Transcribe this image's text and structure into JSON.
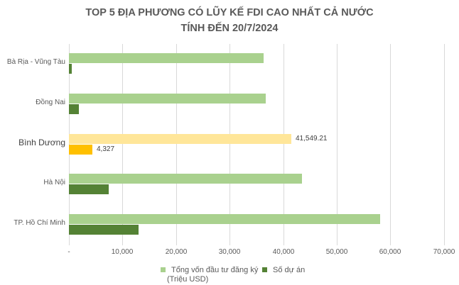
{
  "chart_data": {
    "type": "bar",
    "orientation": "horizontal",
    "title": "TOP 5 ĐỊA PHƯƠNG CÓ LŨY KẾ FDI CAO NHẤT CẢ NƯỚC",
    "subtitle": "TÍNH ĐẾN 20/7/2024",
    "categories": [
      "Bà Rịa - Vũng Tàu",
      "Đồng Nai",
      "Bình Dương",
      "Hà Nội",
      "TP. Hồ Chí Minh"
    ],
    "series": [
      {
        "name": "Tổng vốn đầu tư đăng ký (Triệu USD)",
        "values": [
          36340,
          36740,
          41549.21,
          43500,
          58090
        ],
        "color": "#a9d18e"
      },
      {
        "name": "Số dự án",
        "values": [
          530,
          1860,
          4327,
          7430,
          13000
        ],
        "color": "#548235"
      }
    ],
    "highlight": {
      "category": "Bình Dương",
      "colors": [
        "#ffe699",
        "#ffc000"
      ]
    },
    "data_labels": [
      {
        "category": "Bình Dương",
        "series": "Tổng vốn đầu tư đăng ký (Triệu USD)",
        "text": "41,549.21"
      },
      {
        "category": "Bình Dương",
        "series": "Số dự án",
        "text": "4,327"
      }
    ],
    "xlabel": "",
    "ylabel": "",
    "xlim": [
      0,
      70000
    ],
    "x_ticks": [
      "-",
      "10,000",
      "20,000",
      "30,000",
      "40,000",
      "50,000",
      "60,000",
      "70,000"
    ],
    "grid": true,
    "legend_position": "bottom"
  },
  "title": {
    "line1": "TOP 5 ĐỊA PHƯƠNG CÓ LŨY KẾ FDI CAO NHẤT CẢ NƯỚC",
    "line2": "TÍNH ĐẾN 20/7/2024"
  },
  "legend": {
    "item1_line1": "Tổng vốn đầu tư đăng ký",
    "item1_line2": "(Triệu USD)",
    "item2": "Số dự án"
  }
}
